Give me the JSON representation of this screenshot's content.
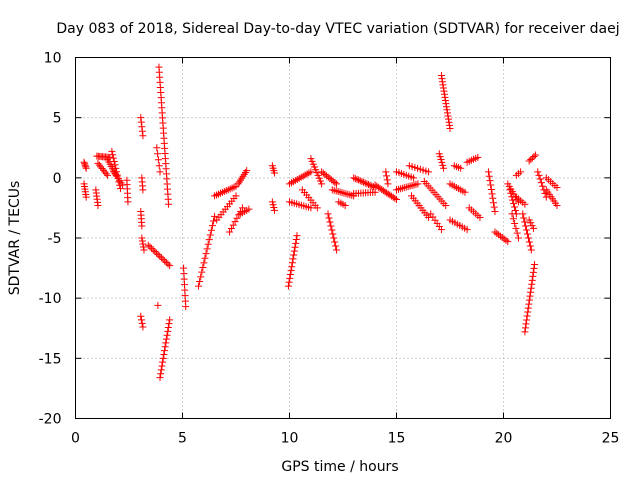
{
  "chart_data": {
    "type": "scatter",
    "title": "Day 083 of 2018, Sidereal Day-to-day VTEC variation (SDTVAR) for receiver daej",
    "xlabel": "GPS time / hours",
    "ylabel": "SDTVAR / TECUs",
    "xlim": [
      0,
      25
    ],
    "ylim": [
      -20,
      10
    ],
    "xticks": [
      0,
      5,
      10,
      15,
      20,
      25
    ],
    "yticks": [
      -20,
      -15,
      -10,
      -5,
      0,
      5,
      10
    ],
    "grid": true,
    "marker": "+",
    "color": "#ff0000",
    "segments": [
      {
        "x0": 0.4,
        "y0": 1.3,
        "x1": 0.5,
        "y1": 0.8,
        "n": 5
      },
      {
        "x0": 0.4,
        "y0": -0.5,
        "x1": 0.5,
        "y1": -1.6,
        "n": 6
      },
      {
        "x0": 0.95,
        "y0": -1.0,
        "x1": 1.05,
        "y1": -2.3,
        "n": 6
      },
      {
        "x0": 1.0,
        "y0": 1.8,
        "x1": 1.6,
        "y1": 1.7,
        "n": 10
      },
      {
        "x0": 1.05,
        "y0": 1.2,
        "x1": 1.5,
        "y1": 0.2,
        "n": 8
      },
      {
        "x0": 1.5,
        "y0": 1.5,
        "x1": 1.9,
        "y1": 0.2,
        "n": 8
      },
      {
        "x0": 1.7,
        "y0": 2.2,
        "x1": 2.1,
        "y1": -0.9,
        "n": 12
      },
      {
        "x0": 1.8,
        "y0": 0.5,
        "x1": 2.2,
        "y1": -0.6,
        "n": 7
      },
      {
        "x0": 2.4,
        "y0": -0.2,
        "x1": 2.45,
        "y1": -2.0,
        "n": 6
      },
      {
        "x0": 3.05,
        "y0": 5.0,
        "x1": 3.15,
        "y1": 3.5,
        "n": 5
      },
      {
        "x0": 3.1,
        "y0": 0.0,
        "x1": 3.15,
        "y1": -1.0,
        "n": 4
      },
      {
        "x0": 3.05,
        "y0": -2.8,
        "x1": 3.1,
        "y1": -4.0,
        "n": 5
      },
      {
        "x0": 3.1,
        "y0": -5.0,
        "x1": 3.2,
        "y1": -6.0,
        "n": 5
      },
      {
        "x0": 3.05,
        "y0": -11.5,
        "x1": 3.15,
        "y1": -12.4,
        "n": 4
      },
      {
        "x0": 3.4,
        "y0": -5.6,
        "x1": 4.4,
        "y1": -7.3,
        "n": 14
      },
      {
        "x0": 3.9,
        "y0": 9.2,
        "x1": 4.35,
        "y1": -2.2,
        "n": 28
      },
      {
        "x0": 3.8,
        "y0": 2.5,
        "x1": 3.95,
        "y1": 0.5,
        "n": 5
      },
      {
        "x0": 3.95,
        "y0": -16.6,
        "x1": 4.4,
        "y1": -11.8,
        "n": 16
      },
      {
        "x0": 3.85,
        "y0": -10.6,
        "x1": 3.85,
        "y1": -10.6,
        "n": 1
      },
      {
        "x0": 5.05,
        "y0": -7.5,
        "x1": 5.15,
        "y1": -10.7,
        "n": 8
      },
      {
        "x0": 5.75,
        "y0": -9.0,
        "x1": 6.5,
        "y1": -3.2,
        "n": 16
      },
      {
        "x0": 6.5,
        "y0": -1.5,
        "x1": 7.5,
        "y1": -0.7,
        "n": 12
      },
      {
        "x0": 6.6,
        "y0": -3.5,
        "x1": 7.5,
        "y1": -1.5,
        "n": 10
      },
      {
        "x0": 7.2,
        "y0": -4.5,
        "x1": 7.8,
        "y1": -2.5,
        "n": 8
      },
      {
        "x0": 7.6,
        "y0": -0.5,
        "x1": 8.0,
        "y1": 0.6,
        "n": 8
      },
      {
        "x0": 7.7,
        "y0": -3.0,
        "x1": 8.1,
        "y1": -2.6,
        "n": 5
      },
      {
        "x0": 9.2,
        "y0": 1.0,
        "x1": 9.3,
        "y1": 0.4,
        "n": 4
      },
      {
        "x0": 9.2,
        "y0": -2.0,
        "x1": 9.3,
        "y1": -2.7,
        "n": 4
      },
      {
        "x0": 9.95,
        "y0": -9.0,
        "x1": 10.35,
        "y1": -4.8,
        "n": 14
      },
      {
        "x0": 10.0,
        "y0": -0.5,
        "x1": 11.0,
        "y1": 0.5,
        "n": 12
      },
      {
        "x0": 10.0,
        "y0": -2.0,
        "x1": 11.0,
        "y1": -2.5,
        "n": 10
      },
      {
        "x0": 10.6,
        "y0": -1.0,
        "x1": 11.3,
        "y1": -2.5,
        "n": 8
      },
      {
        "x0": 11.0,
        "y0": 1.6,
        "x1": 11.5,
        "y1": -0.5,
        "n": 10
      },
      {
        "x0": 11.5,
        "y0": 0.5,
        "x1": 12.2,
        "y1": -0.5,
        "n": 10
      },
      {
        "x0": 11.8,
        "y0": -3.0,
        "x1": 12.2,
        "y1": -6.0,
        "n": 10
      },
      {
        "x0": 12.0,
        "y0": -1.0,
        "x1": 13.0,
        "y1": -1.5,
        "n": 12
      },
      {
        "x0": 12.3,
        "y0": -2.0,
        "x1": 12.6,
        "y1": -2.3,
        "n": 4
      },
      {
        "x0": 13.0,
        "y0": 0.0,
        "x1": 14.0,
        "y1": -0.8,
        "n": 14
      },
      {
        "x0": 13.0,
        "y0": -1.3,
        "x1": 14.0,
        "y1": -1.2,
        "n": 10
      },
      {
        "x0": 14.0,
        "y0": -0.6,
        "x1": 15.0,
        "y1": -1.8,
        "n": 14
      },
      {
        "x0": 14.5,
        "y0": 0.5,
        "x1": 14.6,
        "y1": -0.5,
        "n": 4
      },
      {
        "x0": 15.0,
        "y0": -1.0,
        "x1": 16.0,
        "y1": -0.5,
        "n": 12
      },
      {
        "x0": 15.0,
        "y0": 0.5,
        "x1": 15.8,
        "y1": 0.0,
        "n": 8
      },
      {
        "x0": 15.7,
        "y0": -1.5,
        "x1": 16.5,
        "y1": -3.3,
        "n": 10
      },
      {
        "x0": 15.6,
        "y0": 1.0,
        "x1": 16.5,
        "y1": 0.5,
        "n": 8
      },
      {
        "x0": 16.3,
        "y0": -0.3,
        "x1": 17.3,
        "y1": -2.3,
        "n": 12
      },
      {
        "x0": 16.6,
        "y0": -3.0,
        "x1": 17.1,
        "y1": -4.3,
        "n": 6
      },
      {
        "x0": 17.0,
        "y0": 2.0,
        "x1": 17.2,
        "y1": 0.8,
        "n": 6
      },
      {
        "x0": 17.1,
        "y0": 8.5,
        "x1": 17.5,
        "y1": 4.1,
        "n": 18
      },
      {
        "x0": 17.5,
        "y0": -0.5,
        "x1": 18.2,
        "y1": -1.2,
        "n": 8
      },
      {
        "x0": 17.7,
        "y0": 1.0,
        "x1": 18.0,
        "y1": 0.8,
        "n": 4
      },
      {
        "x0": 17.5,
        "y0": -3.5,
        "x1": 18.3,
        "y1": -4.3,
        "n": 8
      },
      {
        "x0": 18.3,
        "y0": 1.3,
        "x1": 18.8,
        "y1": 1.7,
        "n": 6
      },
      {
        "x0": 18.4,
        "y0": -2.5,
        "x1": 18.9,
        "y1": -3.3,
        "n": 6
      },
      {
        "x0": 19.3,
        "y0": 0.5,
        "x1": 19.6,
        "y1": -2.8,
        "n": 10
      },
      {
        "x0": 19.6,
        "y0": -4.5,
        "x1": 20.2,
        "y1": -5.3,
        "n": 8
      },
      {
        "x0": 20.2,
        "y0": -0.5,
        "x1": 20.7,
        "y1": -2.0,
        "n": 8
      },
      {
        "x0": 20.3,
        "y0": -1.0,
        "x1": 20.6,
        "y1": -3.0,
        "n": 8
      },
      {
        "x0": 20.4,
        "y0": -3.0,
        "x1": 20.7,
        "y1": -5.0,
        "n": 6
      },
      {
        "x0": 20.6,
        "y0": 0.2,
        "x1": 20.8,
        "y1": 0.5,
        "n": 3
      },
      {
        "x0": 20.6,
        "y0": -1.6,
        "x1": 21.0,
        "y1": -2.2,
        "n": 5
      },
      {
        "x0": 20.9,
        "y0": -3.0,
        "x1": 21.3,
        "y1": -6.0,
        "n": 10
      },
      {
        "x0": 21.0,
        "y0": -12.8,
        "x1": 21.45,
        "y1": -7.2,
        "n": 18
      },
      {
        "x0": 21.2,
        "y0": 1.4,
        "x1": 21.5,
        "y1": 1.9,
        "n": 5
      },
      {
        "x0": 21.2,
        "y0": -3.5,
        "x1": 21.4,
        "y1": -4.2,
        "n": 4
      },
      {
        "x0": 21.6,
        "y0": 0.5,
        "x1": 22.0,
        "y1": -1.6,
        "n": 8
      },
      {
        "x0": 22.0,
        "y0": -1.0,
        "x1": 22.5,
        "y1": -2.3,
        "n": 8
      },
      {
        "x0": 22.0,
        "y0": 0.0,
        "x1": 22.5,
        "y1": -0.8,
        "n": 6
      }
    ]
  }
}
